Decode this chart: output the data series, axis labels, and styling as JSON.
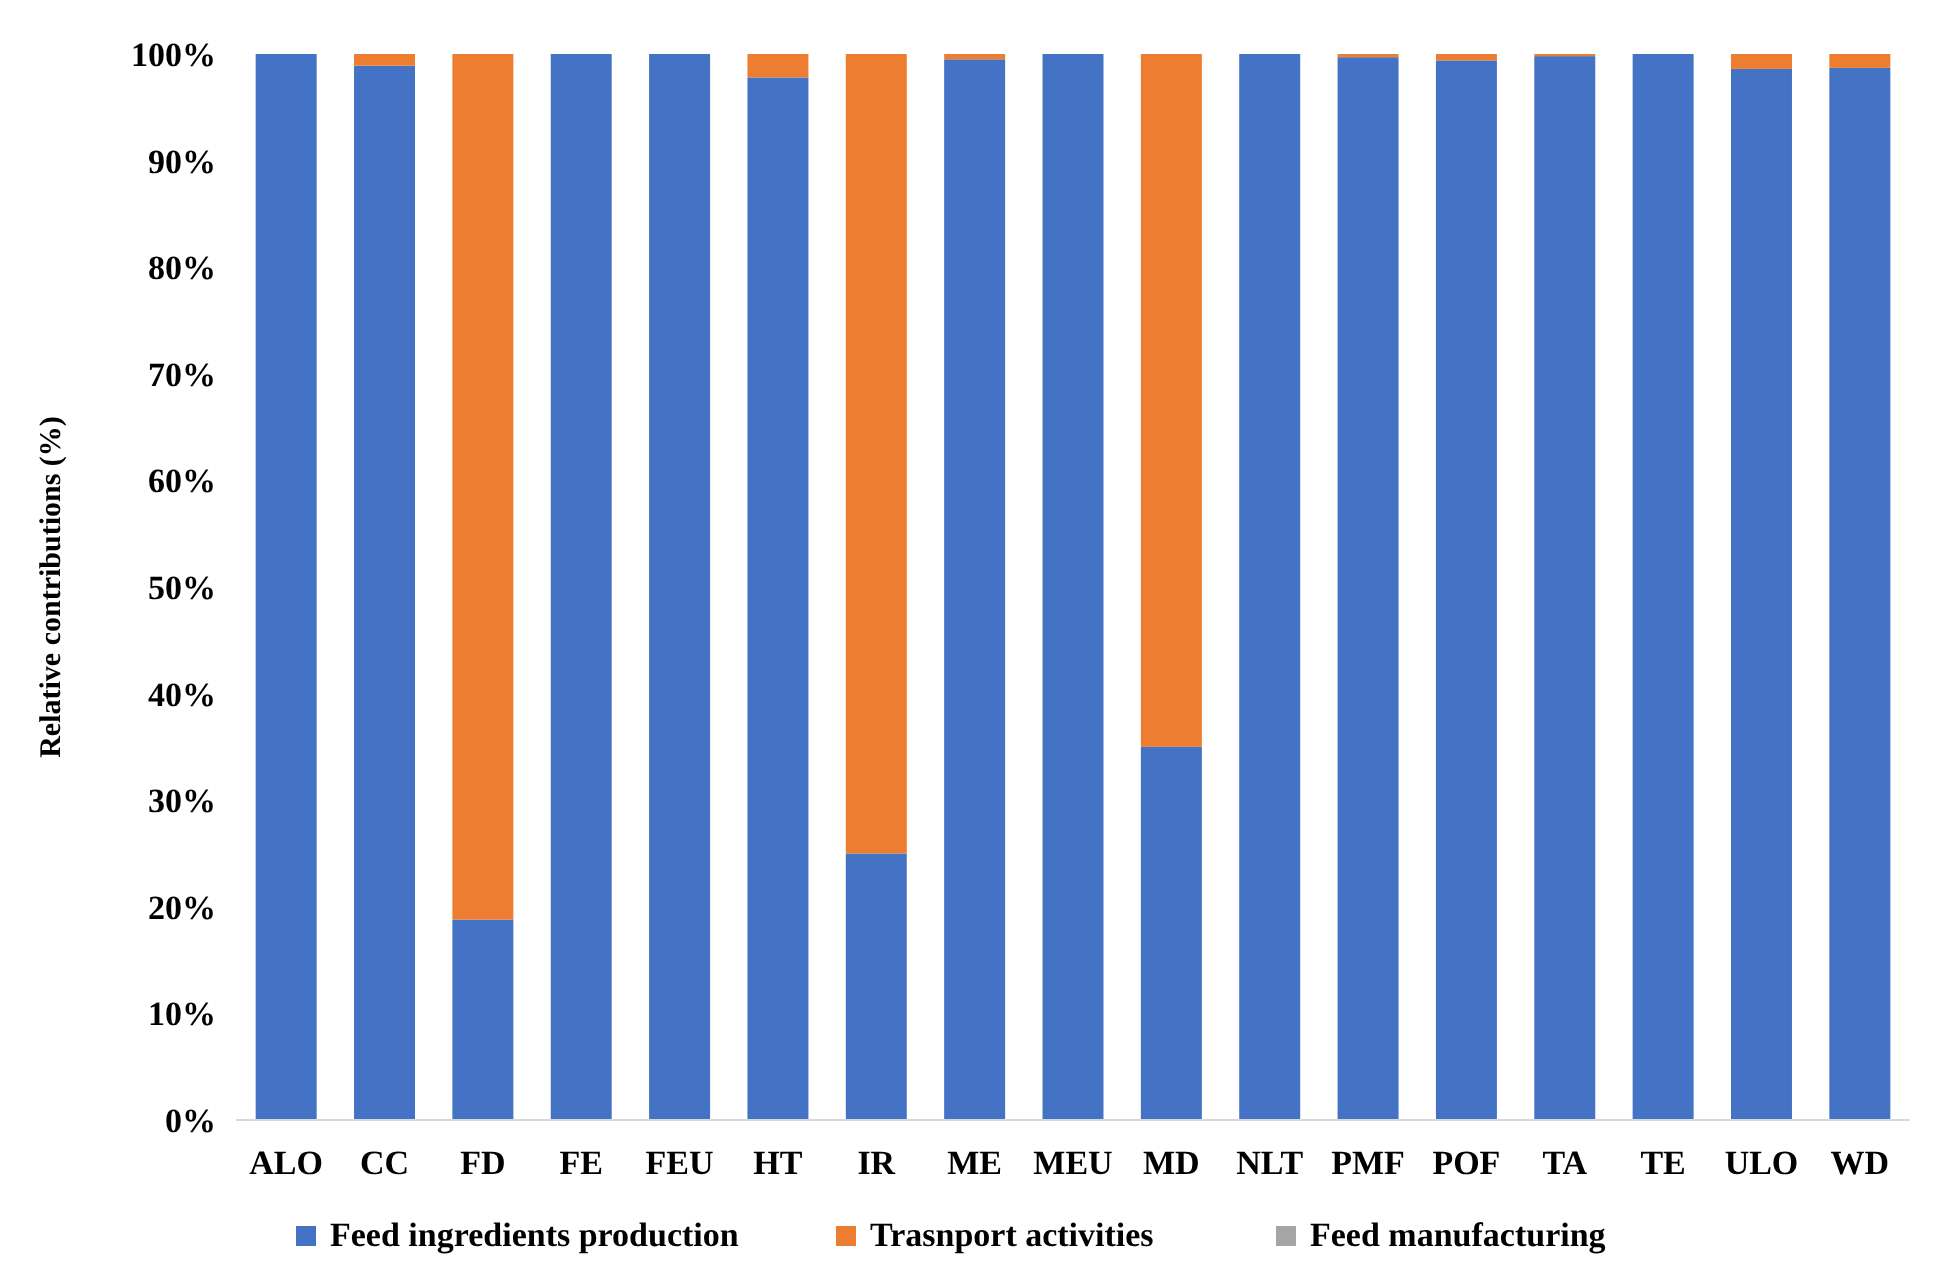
{
  "chart_data": {
    "type": "bar",
    "stacked": true,
    "ylabel": "Relative contributions  (%)",
    "categories": [
      "ALO",
      "CC",
      "FD",
      "FE",
      "FEU",
      "HT",
      "IR",
      "ME",
      "MEU",
      "MD",
      "NLT",
      "PMF",
      "POF",
      "TA",
      "TE",
      "ULO",
      "WD"
    ],
    "series": [
      {
        "name": "Feed ingredients production",
        "color": "#4472c4",
        "values": [
          100,
          98.9,
          18.8,
          100,
          100,
          97.8,
          25,
          99.5,
          100,
          35,
          100,
          99.7,
          99.4,
          99.8,
          100,
          98.6,
          98.7
        ]
      },
      {
        "name": "Trasnport activities",
        "color": "#ed7d31",
        "values": [
          0,
          1.1,
          81.2,
          0,
          0,
          2.2,
          75,
          0.5,
          0,
          65,
          0,
          0.3,
          0.6,
          0.2,
          0,
          1.4,
          1.3
        ]
      },
      {
        "name": "Feed manufacturing",
        "color": "#a5a5a5",
        "values": [
          0,
          0,
          0,
          0,
          0,
          0,
          0,
          0,
          0,
          0,
          0,
          0,
          0,
          0,
          0,
          0,
          0
        ]
      }
    ],
    "ylim": [
      0,
      100
    ],
    "yticks": [
      {
        "value": 0,
        "label": "0%"
      },
      {
        "value": 10,
        "label": "10%"
      },
      {
        "value": 20,
        "label": "20%"
      },
      {
        "value": 30,
        "label": "30%"
      },
      {
        "value": 40,
        "label": "40%"
      },
      {
        "value": 50,
        "label": "50%"
      },
      {
        "value": 60,
        "label": "60%"
      },
      {
        "value": 70,
        "label": "70%"
      },
      {
        "value": 80,
        "label": "80%"
      },
      {
        "value": 90,
        "label": "90%"
      },
      {
        "value": 100,
        "label": "100%"
      }
    ],
    "grid": false,
    "legend": "bottom"
  }
}
